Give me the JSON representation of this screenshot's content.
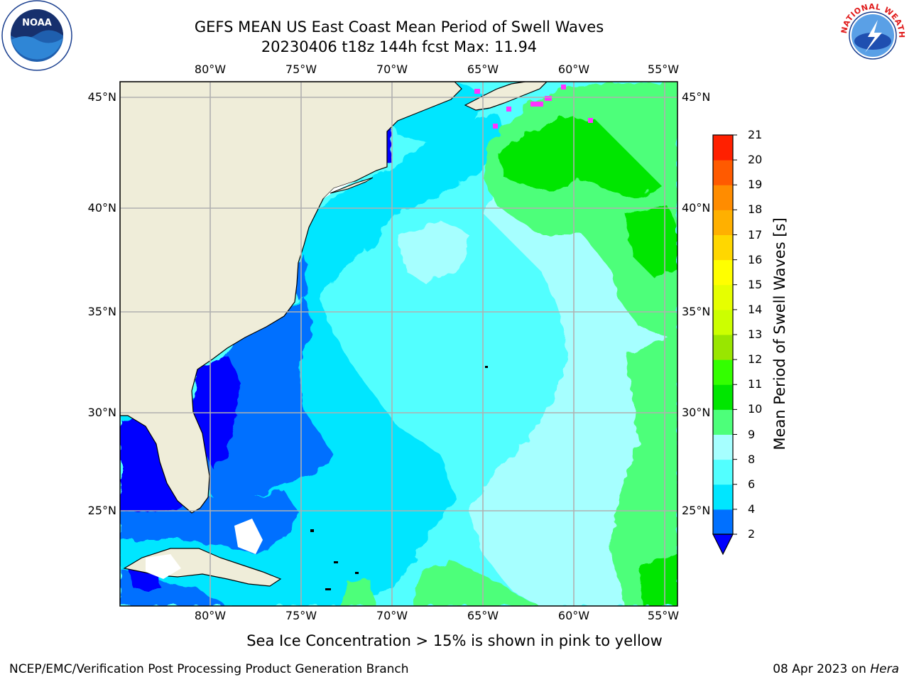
{
  "title": {
    "line1": "GEFS MEAN US East Coast Mean Period of Swell Waves",
    "line2": "20230406 t18z 144h fcst   Max: 11.94"
  },
  "map": {
    "lon_ticks_top": [
      "80°W",
      "75°W",
      "70°W",
      "65°W",
      "60°W",
      "55°W"
    ],
    "lon_ticks_bottom": [
      "80°W",
      "75°W",
      "70°W",
      "65°W",
      "60°W",
      "55°W"
    ],
    "lat_ticks_left": [
      "45°N",
      "40°N",
      "35°N",
      "30°N",
      "25°N"
    ],
    "lat_ticks_right": [
      "45°N",
      "40°N",
      "35°N",
      "30°N",
      "25°N"
    ],
    "land_color": "#efedd9",
    "grid_color": "#b0b0b0"
  },
  "colorbar": {
    "label": "Mean Period of Swell Waves [s]",
    "ticks": [
      "2",
      "4",
      "6",
      "8",
      "9",
      "10",
      "11",
      "12",
      "13",
      "14",
      "15",
      "16",
      "17",
      "18",
      "19",
      "20",
      "21"
    ],
    "colors": [
      "#0070ff",
      "#00e6ff",
      "#52ffff",
      "#a6ffff",
      "#4dff7a",
      "#00e600",
      "#33ff00",
      "#99e600",
      "#ccff00",
      "#e6ff00",
      "#ffff00",
      "#ffd700",
      "#ffb000",
      "#ff8c00",
      "#ff5a00",
      "#ff2000"
    ],
    "under_color": "#0000ff"
  },
  "legend_note": "Sea Ice Concentration > 15% is shown in pink to yellow",
  "footer": {
    "left": "NCEP/EMC/Verification Post Processing Product Generation Branch",
    "date": "08 Apr 2023 on ",
    "machine": "Hera"
  },
  "logos": {
    "noaa_text": "NOAA",
    "nws_text": "NATIONAL WEATHER SERVICE"
  }
}
